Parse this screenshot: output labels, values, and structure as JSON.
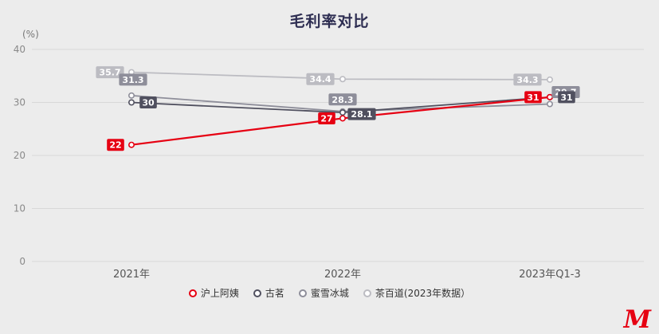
{
  "logo_text": "M",
  "chart_data": {
    "type": "line",
    "title": "毛利率对比",
    "ylabel": "(%)",
    "xlabel": "",
    "categories": [
      "2021年",
      "2022年",
      "2023年Q1-3"
    ],
    "series": [
      {
        "name": "沪上阿姨",
        "color": "#e60012",
        "values": [
          22,
          27,
          31
        ],
        "labels": [
          "22",
          "27",
          "31"
        ],
        "label_offsets": [
          [
            -20,
            0
          ],
          [
            -20,
            0
          ],
          [
            -21,
            0
          ]
        ]
      },
      {
        "name": "古茗",
        "color": "#50505f",
        "values": [
          30,
          28.1,
          31
        ],
        "labels": [
          "30",
          "28.1",
          "31"
        ],
        "label_offsets": [
          [
            21,
            0
          ],
          [
            24,
            2
          ],
          [
            21,
            0
          ]
        ]
      },
      {
        "name": "蜜雪冰城",
        "color": "#8e8e9a",
        "values": [
          31.3,
          28.3,
          29.7
        ],
        "labels": [
          "31.3",
          "28.3",
          "29.7"
        ],
        "label_offsets": [
          [
            2,
            -20
          ],
          [
            0,
            -15
          ],
          [
            20,
            -15
          ]
        ]
      },
      {
        "name": "茶百道(2023年数据）",
        "color": "#bcbcc2",
        "values": [
          35.7,
          34.4,
          34.3
        ],
        "labels": [
          "35.7",
          "34.4",
          "34.3"
        ],
        "label_offsets": [
          [
            -27,
            0
          ],
          [
            -28,
            0
          ],
          [
            -28,
            0
          ]
        ]
      }
    ],
    "ylim": [
      0,
      40
    ],
    "yticks": [
      0,
      10,
      20,
      30,
      40
    ],
    "grid": true,
    "legend_position": "bottom"
  }
}
